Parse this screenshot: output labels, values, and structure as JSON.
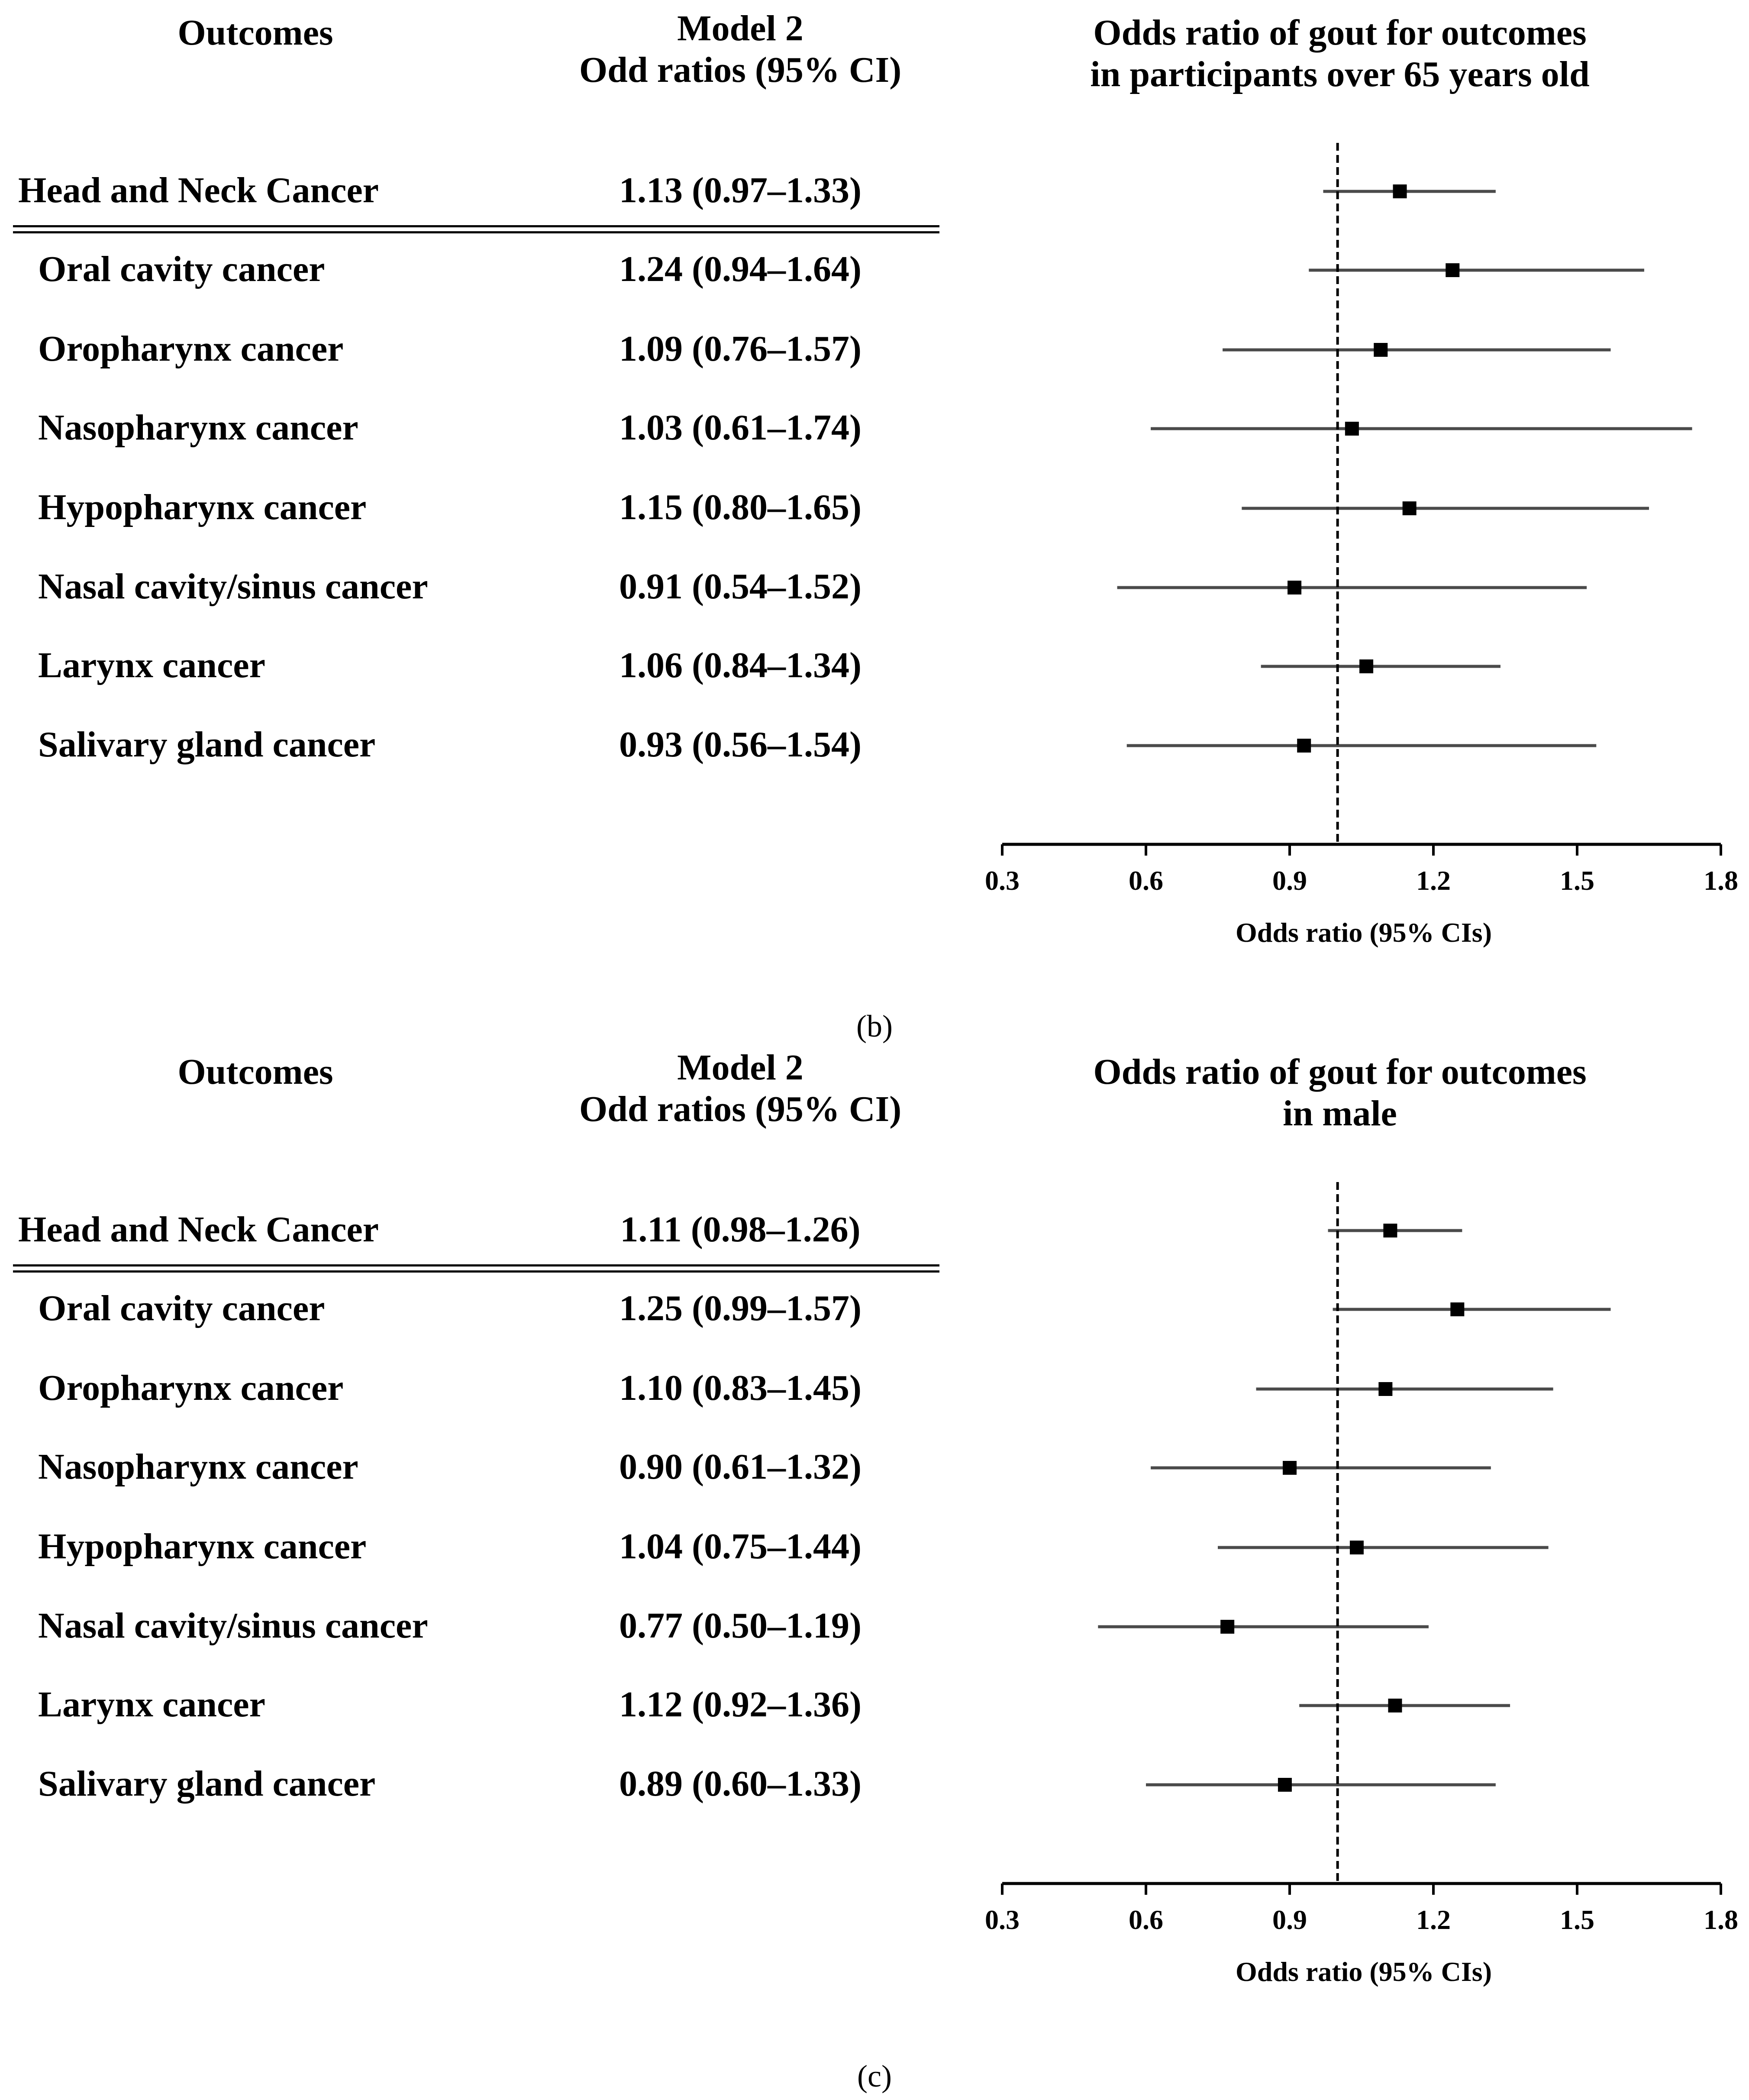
{
  "chart_data": [
    {
      "type": "forest",
      "headers": {
        "outcomes": "Outcomes",
        "model_line1": "Model 2",
        "model_line2": "Odd ratios (95% CI)",
        "title_line1": "Odds ratio of gout for outcomes",
        "title_line2": "in participants over 65 years old"
      },
      "xlabel": "Odds ratio (95% CIs)",
      "xticks": [
        "0.3",
        "0.6",
        "0.9",
        "1.2",
        "1.5",
        "1.8"
      ],
      "xlim": [
        0.3,
        1.8
      ],
      "reference_line": 1.0,
      "caption": "",
      "rows": [
        {
          "label": "Head and Neck Cancer",
          "value_text": "1.13 (0.97–1.33)",
          "or": 1.13,
          "lo": 0.97,
          "hi": 1.33
        },
        {
          "label": "Oral cavity cancer",
          "value_text": "1.24 (0.94–1.64)",
          "or": 1.24,
          "lo": 0.94,
          "hi": 1.64
        },
        {
          "label": "Oropharynx cancer",
          "value_text": "1.09 (0.76–1.57)",
          "or": 1.09,
          "lo": 0.76,
          "hi": 1.57
        },
        {
          "label": "Nasopharynx cancer",
          "value_text": "1.03 (0.61–1.74)",
          "or": 1.03,
          "lo": 0.61,
          "hi": 1.74
        },
        {
          "label": "Hypopharynx cancer",
          "value_text": "1.15 (0.80–1.65)",
          "or": 1.15,
          "lo": 0.8,
          "hi": 1.65
        },
        {
          "label": "Nasal cavity/sinus cancer",
          "value_text": "0.91 (0.54–1.52)",
          "or": 0.91,
          "lo": 0.54,
          "hi": 1.52
        },
        {
          "label": "Larynx cancer",
          "value_text": "1.06 (0.84–1.34)",
          "or": 1.06,
          "lo": 0.84,
          "hi": 1.34
        },
        {
          "label": "Salivary gland cancer",
          "value_text": "0.93 (0.56–1.54)",
          "or": 0.93,
          "lo": 0.56,
          "hi": 1.54
        }
      ]
    },
    {
      "type": "forest",
      "headers": {
        "outcomes": "Outcomes",
        "model_line1": "Model 2",
        "model_line2": "Odd ratios (95% CI)",
        "title_line1": "Odds ratio of gout for outcomes",
        "title_line2": "in male"
      },
      "xlabel": "Odds ratio (95% CIs)",
      "xticks": [
        "0.3",
        "0.6",
        "0.9",
        "1.2",
        "1.5",
        "1.8"
      ],
      "xlim": [
        0.3,
        1.8
      ],
      "reference_line": 1.0,
      "caption": "(b)",
      "rows": [
        {
          "label": "Head and Neck Cancer",
          "value_text": "1.11 (0.98–1.26)",
          "or": 1.11,
          "lo": 0.98,
          "hi": 1.26
        },
        {
          "label": "Oral cavity cancer",
          "value_text": "1.25 (0.99–1.57)",
          "or": 1.25,
          "lo": 0.99,
          "hi": 1.57
        },
        {
          "label": "Oropharynx cancer",
          "value_text": "1.10 (0.83–1.45)",
          "or": 1.1,
          "lo": 0.83,
          "hi": 1.45
        },
        {
          "label": "Nasopharynx cancer",
          "value_text": "0.90 (0.61–1.32)",
          "or": 0.9,
          "lo": 0.61,
          "hi": 1.32
        },
        {
          "label": "Hypopharynx cancer",
          "value_text": "1.04 (0.75–1.44)",
          "or": 1.04,
          "lo": 0.75,
          "hi": 1.44
        },
        {
          "label": "Nasal cavity/sinus cancer",
          "value_text": "0.77 (0.50–1.19)",
          "or": 0.77,
          "lo": 0.5,
          "hi": 1.19
        },
        {
          "label": "Larynx cancer",
          "value_text": "1.12 (0.92–1.36)",
          "or": 1.12,
          "lo": 0.92,
          "hi": 1.36
        },
        {
          "label": "Salivary gland cancer",
          "value_text": "0.89 (0.60–1.33)",
          "or": 0.89,
          "lo": 0.6,
          "hi": 1.33
        }
      ]
    }
  ],
  "bottom_caption": "(c)"
}
